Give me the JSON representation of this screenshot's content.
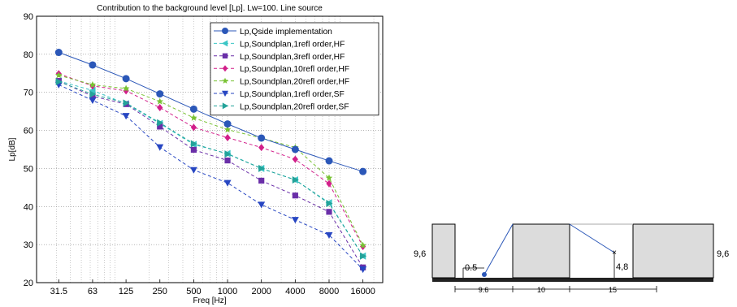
{
  "chart_data": {
    "type": "line",
    "title": "Contribution to the background level [Lp]. Lw=100. Line source",
    "xlabel": "Freq [Hz]",
    "ylabel": "Lp[dB]",
    "categories": [
      "31.5",
      "63",
      "125",
      "250",
      "500",
      "1000",
      "2000",
      "4000",
      "8000",
      "16000"
    ],
    "ylim": [
      20,
      90
    ],
    "yticks": [
      20,
      30,
      40,
      50,
      60,
      70,
      80,
      90
    ],
    "x_scale": "log",
    "grid": true,
    "legend_position": "top-right",
    "series": [
      {
        "name": "Lp,Qside implementation",
        "color": "#2b57b8",
        "style": "solid",
        "marker": "circle",
        "values": [
          80.5,
          77.2,
          73.6,
          69.6,
          65.6,
          61.7,
          58.0,
          55.0,
          52.0,
          49.2
        ]
      },
      {
        "name": "Lp,Soundplan,1refl order,HF",
        "color": "#3cc6c6",
        "style": "dashed",
        "marker": "triangle-left",
        "values": [
          73.0,
          70.5,
          67.0,
          61.8,
          56.3,
          53.9,
          50.0,
          47.0,
          41.0,
          27.0
        ]
      },
      {
        "name": "Lp,Soundplan,3refl order,HF",
        "color": "#6a2fa8",
        "style": "dashed",
        "marker": "square",
        "values": [
          73.0,
          69.0,
          66.9,
          61.0,
          54.9,
          52.1,
          46.8,
          42.9,
          38.6,
          24.0
        ]
      },
      {
        "name": "Lp,Soundplan,10refl order,HF",
        "color": "#d21f8a",
        "style": "dashed",
        "marker": "diamond",
        "values": [
          74.9,
          71.7,
          70.4,
          66.0,
          60.8,
          58.1,
          55.5,
          52.4,
          46.0,
          29.5
        ]
      },
      {
        "name": "Lp,Soundplan,20refl order,HF",
        "color": "#78c233",
        "style": "dashed",
        "marker": "star",
        "values": [
          74.5,
          72.0,
          71.0,
          67.6,
          63.3,
          60.2,
          58.0,
          55.5,
          47.5,
          29.8
        ]
      },
      {
        "name": "Lp,Soundplan,1refl order,SF",
        "color": "#2746c2",
        "style": "dashed",
        "marker": "triangle-down",
        "values": [
          72.0,
          67.9,
          63.8,
          55.6,
          49.6,
          46.2,
          40.5,
          36.5,
          32.5,
          23.5
        ]
      },
      {
        "name": "Lp,Soundplan,20refl order,SF",
        "color": "#23a39a",
        "style": "dashed",
        "marker": "triangle-right",
        "values": [
          72.8,
          69.5,
          67.2,
          62.0,
          56.5,
          53.8,
          50.0,
          47.0,
          40.8,
          27.0
        ]
      }
    ]
  },
  "diagram": {
    "labels": {
      "height_left": "9,6",
      "height_right": "9,6",
      "source_height": "0.5",
      "receiver_height": "4,8",
      "dim_1": "9.6",
      "dim_2": "10",
      "dim_3": "15"
    }
  }
}
